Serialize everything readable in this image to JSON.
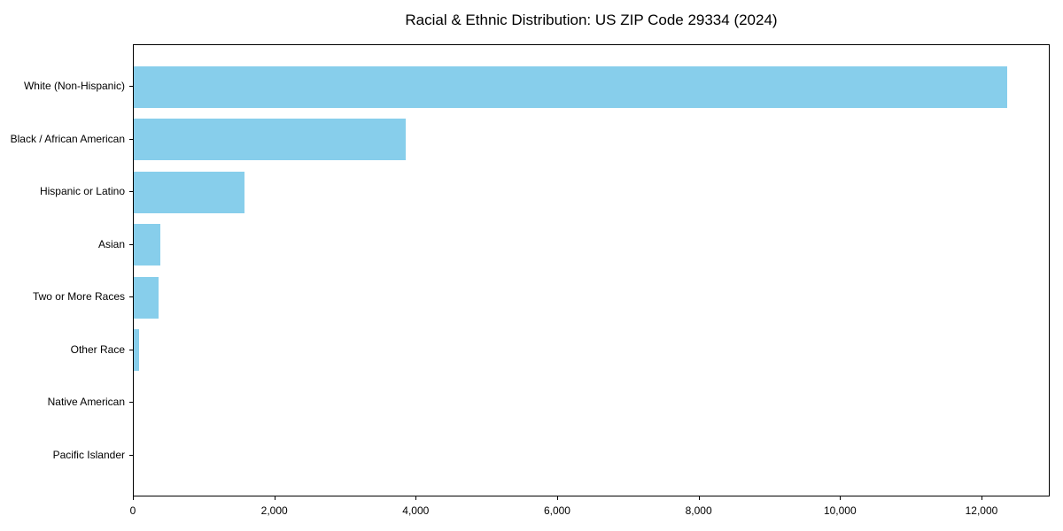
{
  "title": "Racial & Ethnic Distribution: US ZIP Code 29334 (2024)",
  "colors": {
    "bar": "#87CEEB",
    "axis": "#000000",
    "text": "#000000",
    "background": "#ffffff"
  },
  "chart_data": {
    "type": "bar",
    "orientation": "horizontal",
    "title": "Racial & Ethnic Distribution: US ZIP Code 29334 (2024)",
    "xlabel": "",
    "ylabel": "",
    "categories": [
      "White (Non-Hispanic)",
      "Black / African American",
      "Hispanic or Latino",
      "Asian",
      "Two or More Races",
      "Other Race",
      "Native American",
      "Pacific Islander"
    ],
    "values": [
      12350,
      3845,
      1565,
      375,
      350,
      70,
      0,
      0
    ],
    "xlim": [
      0,
      12965
    ],
    "x_ticks": [
      0,
      2000,
      4000,
      6000,
      8000,
      10000,
      12000
    ],
    "x_tick_labels": [
      "0",
      "2,000",
      "4,000",
      "6,000",
      "8,000",
      "10,000",
      "12,000"
    ],
    "grid": false,
    "legend_position": "none",
    "bar_color": "#87CEEB"
  }
}
